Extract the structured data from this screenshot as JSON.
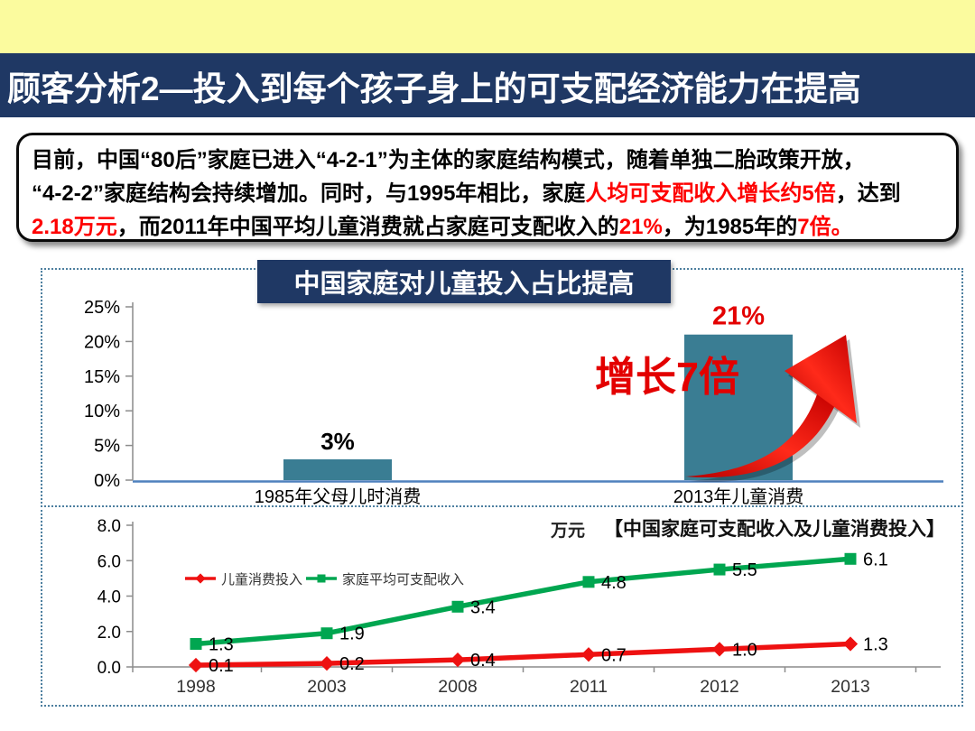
{
  "header": {
    "title": "顾客分析2—投入到每个孩子身上的可支配经济能力在提高"
  },
  "summary": {
    "lines": [
      [
        {
          "text": "目前，中国“80后”家庭已进入“4-2-1”为主体的家庭结构模式，随着单独二胎政策开放，",
          "highlight": false
        }
      ],
      [
        {
          "text": "“4-2-2”家庭结构会持续增加。同时，与1995年相比，家庭",
          "highlight": false
        },
        {
          "text": "人均可支配收入增长约5倍",
          "highlight": true
        },
        {
          "text": "，达到",
          "highlight": false
        }
      ],
      [
        {
          "text": "2.18万元",
          "highlight": true
        },
        {
          "text": "，而2011年中国平均儿童消费就占家庭可支配收入的",
          "highlight": false
        },
        {
          "text": "21%",
          "highlight": true
        },
        {
          "text": "，为1985年的",
          "highlight": false
        },
        {
          "text": "7倍。",
          "highlight": true
        }
      ]
    ]
  },
  "chart_data": [
    {
      "type": "bar",
      "title": "中国家庭对儿童投入占比提高",
      "categories": [
        "1985年父母儿时消费",
        "2013年儿童消费"
      ],
      "values": [
        3,
        21
      ],
      "value_labels": [
        "3%",
        "21%"
      ],
      "value_label_colors": [
        "#000000",
        "#e30000"
      ],
      "annotation": "增长7倍",
      "xlabel": "",
      "ylabel": "",
      "ylim": [
        0,
        25
      ],
      "ytick_step": 5,
      "ytick_suffix": "%",
      "bar_color": "#3a7d93",
      "baseline_color": "#4f81bd",
      "grid": false,
      "legend_position": "none"
    },
    {
      "type": "line",
      "title": "【中国家庭可支配收入及儿童消费投入】",
      "unit": "万元",
      "categories": [
        "1998",
        "2003",
        "2008",
        "2011",
        "2012",
        "2013"
      ],
      "series": [
        {
          "name": "儿童消费投入",
          "color": "#ee1111",
          "marker": "diamond",
          "values": [
            0.1,
            0.2,
            0.4,
            0.7,
            1.0,
            1.3
          ]
        },
        {
          "name": "家庭平均可支配收入",
          "color": "#00a650",
          "marker": "square",
          "values": [
            1.3,
            1.9,
            3.4,
            4.8,
            5.5,
            6.1
          ]
        }
      ],
      "ylim": [
        0,
        8
      ],
      "yticks": [
        "0.0",
        "2.0",
        "4.0",
        "6.0",
        "8.0"
      ],
      "grid": false,
      "legend_position": "inside-left"
    }
  ],
  "colors": {
    "accent_yellow": "#fbfb9e",
    "accent_navy": "#1f3864",
    "bar_teal": "#3a7d93",
    "highlight_red": "#fe0000",
    "panel_border": "#4d7f9f"
  }
}
